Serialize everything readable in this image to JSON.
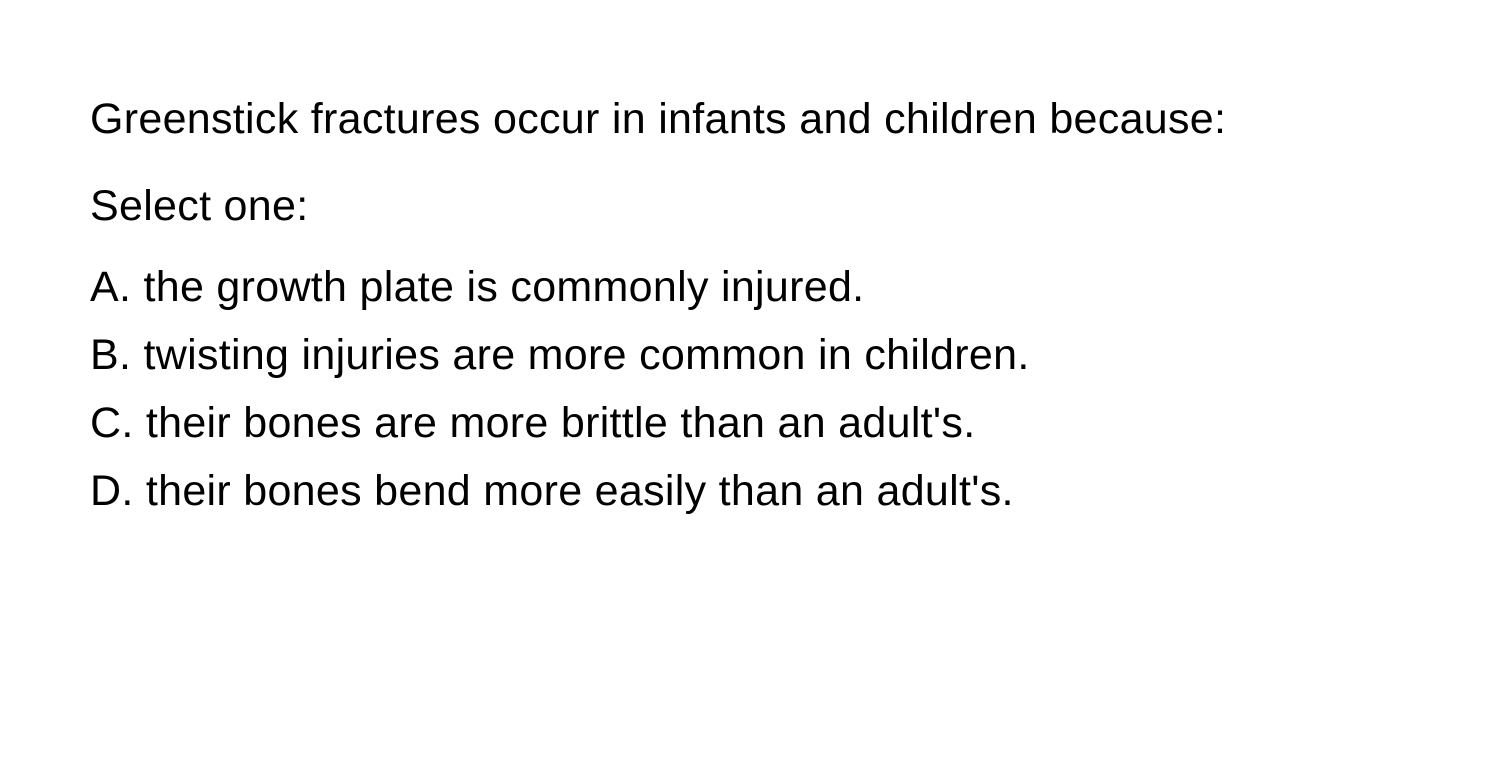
{
  "question": {
    "stem": "Greenstick fractures occur in infants and children because:",
    "select_prompt": "Select one:",
    "options": [
      {
        "label": "A.",
        "text": "the growth plate is commonly injured."
      },
      {
        "label": "B.",
        "text": "twisting injuries are more common in children."
      },
      {
        "label": "C.",
        "text": "their bones are more brittle than an adult's."
      },
      {
        "label": "D.",
        "text": "their bones bend more easily than an adult's."
      }
    ]
  },
  "style": {
    "background_color": "#ffffff",
    "text_color": "#000000",
    "font_size_pt": 32,
    "font_weight": 400,
    "line_height": 1.6
  }
}
